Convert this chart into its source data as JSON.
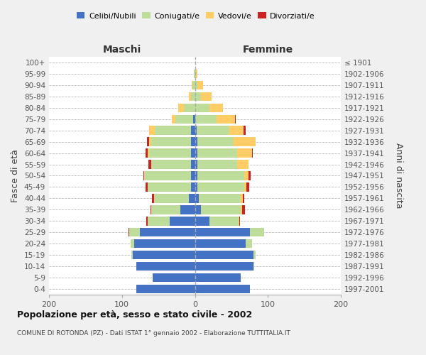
{
  "age_groups": [
    "0-4",
    "5-9",
    "10-14",
    "15-19",
    "20-24",
    "25-29",
    "30-34",
    "35-39",
    "40-44",
    "45-49",
    "50-54",
    "55-59",
    "60-64",
    "65-69",
    "70-74",
    "75-79",
    "80-84",
    "85-89",
    "90-94",
    "95-99",
    "100+"
  ],
  "birth_years": [
    "1997-2001",
    "1992-1996",
    "1987-1991",
    "1982-1986",
    "1977-1981",
    "1972-1976",
    "1967-1971",
    "1962-1966",
    "1957-1961",
    "1952-1956",
    "1947-1951",
    "1942-1946",
    "1937-1941",
    "1932-1936",
    "1927-1931",
    "1922-1926",
    "1917-1921",
    "1912-1916",
    "1907-1911",
    "1902-1906",
    "≤ 1901"
  ],
  "males": {
    "celibi": [
      80,
      58,
      80,
      85,
      83,
      75,
      35,
      20,
      8,
      5,
      5,
      5,
      5,
      5,
      5,
      2,
      0,
      0,
      0,
      0,
      0
    ],
    "coniugati": [
      0,
      0,
      0,
      2,
      5,
      15,
      30,
      40,
      48,
      60,
      65,
      55,
      58,
      55,
      50,
      25,
      15,
      5,
      3,
      1,
      0
    ],
    "vedovi": [
      0,
      0,
      0,
      0,
      0,
      0,
      0,
      0,
      0,
      0,
      0,
      0,
      2,
      3,
      8,
      5,
      8,
      3,
      1,
      0,
      0
    ],
    "divorziati": [
      0,
      0,
      0,
      0,
      0,
      1,
      2,
      1,
      3,
      3,
      1,
      4,
      3,
      3,
      0,
      0,
      0,
      0,
      0,
      0,
      0
    ]
  },
  "females": {
    "nubili": [
      75,
      63,
      80,
      80,
      70,
      75,
      20,
      8,
      5,
      3,
      3,
      3,
      3,
      3,
      2,
      0,
      0,
      0,
      0,
      0,
      0
    ],
    "coniugate": [
      0,
      0,
      1,
      3,
      8,
      20,
      40,
      55,
      58,
      65,
      65,
      55,
      55,
      50,
      45,
      30,
      20,
      8,
      3,
      1,
      0
    ],
    "vedove": [
      0,
      0,
      0,
      0,
      0,
      0,
      1,
      2,
      3,
      3,
      5,
      15,
      20,
      30,
      20,
      25,
      18,
      15,
      8,
      2,
      0
    ],
    "divorziate": [
      0,
      0,
      0,
      0,
      0,
      0,
      1,
      4,
      2,
      3,
      3,
      0,
      1,
      0,
      3,
      1,
      0,
      0,
      0,
      0,
      0
    ]
  },
  "colors": {
    "celibi_nubili": "#4472C4",
    "coniugati": "#BEDD9B",
    "vedovi": "#FFCC66",
    "divorziati": "#CC2222"
  },
  "xlim": 200,
  "title": "Popolazione per età, sesso e stato civile - 2002",
  "subtitle": "COMUNE DI ROTONDA (PZ) - Dati ISTAT 1° gennaio 2002 - Elaborazione TUTTITALIA.IT",
  "ylabel": "Fasce di età",
  "ylabel_right": "Anni di nascita",
  "xlabel_left": "Maschi",
  "xlabel_right": "Femmine",
  "background_color": "#f0f0f0",
  "plot_background": "#ffffff"
}
